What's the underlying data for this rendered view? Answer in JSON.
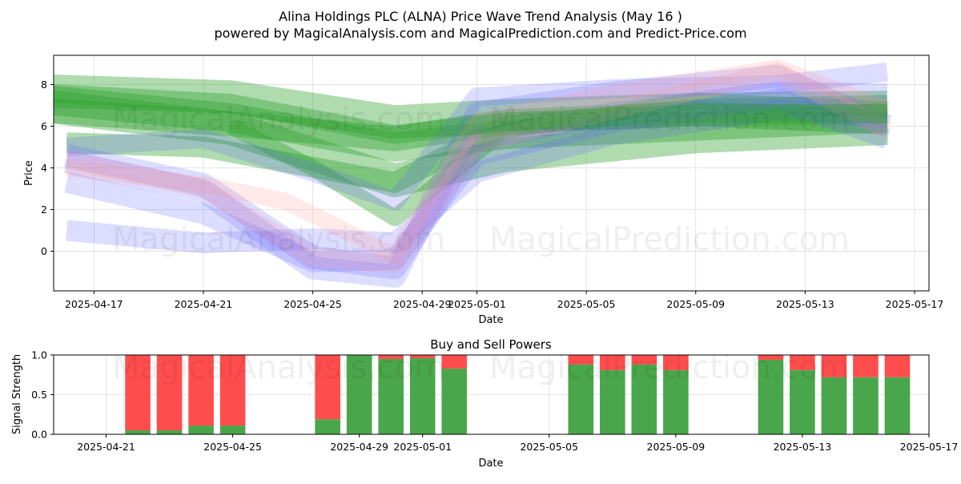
{
  "figure": {
    "title_line1": "Alina Holdings PLC (ALNA) Price Wave Trend Analysis (May 16 )",
    "title_line2": "powered by MagicalAnalysis.com and MagicalPrediction.com and Predict-Price.com",
    "watermark_left": "MagicalAnalysis.com",
    "watermark_right": "MagicalPrediction.com"
  },
  "colors": {
    "green_band": "#2ca02c",
    "blue_band": "#6666ff",
    "red_band": "#ff9999",
    "buy_bar": "#4aa64a",
    "sell_bar": "#ff4d4d",
    "grid": "#dddddd"
  },
  "chart_data": [
    {
      "type": "area",
      "title": "",
      "xlabel": "Date",
      "ylabel": "Price",
      "x_range": [
        "2025-04-15",
        "2025-05-17"
      ],
      "ylim": [
        -1.9,
        9.4
      ],
      "xticks": [
        "2025-04-17",
        "2025-04-21",
        "2025-04-25",
        "2025-04-29",
        "2025-05-01",
        "2025-05-05",
        "2025-05-09",
        "2025-05-13",
        "2025-05-17"
      ],
      "yticks": [
        0,
        2,
        4,
        6,
        8
      ],
      "grid": true,
      "series": [
        {
          "color": "green",
          "points": [
            [
              "2025-04-15",
              7.7
            ],
            [
              "2025-04-22",
              7.4
            ],
            [
              "2025-04-28",
              6.2
            ],
            [
              "2025-05-02",
              6.5
            ],
            [
              "2025-05-09",
              6.8
            ],
            [
              "2025-05-16",
              6.9
            ]
          ],
          "width": 1.6
        },
        {
          "color": "green",
          "points": [
            [
              "2025-04-15",
              7.3
            ],
            [
              "2025-04-22",
              6.4
            ],
            [
              "2025-04-28",
              5.0
            ],
            [
              "2025-05-02",
              5.6
            ],
            [
              "2025-05-09",
              6.0
            ],
            [
              "2025-05-16",
              6.4
            ]
          ],
          "width": 1.4
        },
        {
          "color": "green",
          "points": [
            [
              "2025-04-15",
              7.0
            ],
            [
              "2025-04-22",
              5.9
            ],
            [
              "2025-04-28",
              3.4
            ],
            [
              "2025-05-02",
              4.6
            ],
            [
              "2025-05-09",
              5.5
            ],
            [
              "2025-05-16",
              5.9
            ]
          ],
          "width": 1.6
        },
        {
          "color": "green",
          "points": [
            [
              "2025-04-15",
              6.8
            ],
            [
              "2025-04-23",
              6.0
            ],
            [
              "2025-04-28",
              5.4
            ],
            [
              "2025-05-02",
              6.2
            ],
            [
              "2025-05-09",
              6.6
            ],
            [
              "2025-05-16",
              6.2
            ]
          ],
          "width": 1.2
        },
        {
          "color": "green",
          "points": [
            [
              "2025-04-16",
              5.2
            ],
            [
              "2025-04-21",
              5.0
            ],
            [
              "2025-04-28",
              3.3
            ],
            [
              "2025-05-02",
              6.0
            ],
            [
              "2025-05-09",
              6.8
            ],
            [
              "2025-05-16",
              7.0
            ]
          ],
          "width": 1.0
        },
        {
          "color": "green",
          "points": [
            [
              "2025-04-22",
              6.0
            ],
            [
              "2025-04-25",
              4.0
            ],
            [
              "2025-04-28",
              1.6
            ],
            [
              "2025-05-02",
              5.8
            ],
            [
              "2025-05-09",
              7.2
            ],
            [
              "2025-05-16",
              6.8
            ]
          ],
          "width": 0.8
        },
        {
          "color": "blue",
          "points": [
            [
              "2025-04-16",
              4.6
            ],
            [
              "2025-04-21",
              3.2
            ],
            [
              "2025-04-25",
              -0.3
            ],
            [
              "2025-04-28",
              -0.8
            ],
            [
              "2025-05-01",
              5.4
            ],
            [
              "2025-05-06",
              6.6
            ],
            [
              "2025-05-12",
              7.6
            ],
            [
              "2025-05-16",
              7.5
            ]
          ],
          "width": 1.1
        },
        {
          "color": "blue",
          "points": [
            [
              "2025-04-16",
              4.3
            ],
            [
              "2025-04-21",
              2.9
            ],
            [
              "2025-04-25",
              -0.8
            ],
            [
              "2025-04-28",
              -1.2
            ],
            [
              "2025-05-01",
              6.6
            ],
            [
              "2025-05-06",
              7.6
            ],
            [
              "2025-05-12",
              8.4
            ],
            [
              "2025-05-16",
              6.0
            ]
          ],
          "width": 1.1
        },
        {
          "color": "blue",
          "points": [
            [
              "2025-04-16",
              3.3
            ],
            [
              "2025-04-21",
              1.8
            ],
            [
              "2025-04-25",
              -0.5
            ],
            [
              "2025-04-28",
              -0.4
            ],
            [
              "2025-05-01",
              4.6
            ],
            [
              "2025-05-06",
              6.2
            ],
            [
              "2025-05-12",
              7.3
            ],
            [
              "2025-05-16",
              5.4
            ]
          ],
          "width": 1.0
        },
        {
          "color": "blue",
          "points": [
            [
              "2025-04-16",
              1.0
            ],
            [
              "2025-04-21",
              0.4
            ],
            [
              "2025-04-25",
              0.6
            ],
            [
              "2025-04-28",
              0.4
            ],
            [
              "2025-05-01",
              3.8
            ],
            [
              "2025-05-06",
              5.6
            ],
            [
              "2025-05-12",
              6.8
            ],
            [
              "2025-05-16",
              6.4
            ]
          ],
          "width": 1.0
        },
        {
          "color": "blue",
          "points": [
            [
              "2025-04-16",
              5.0
            ],
            [
              "2025-04-21",
              5.4
            ],
            [
              "2025-04-25",
              3.8
            ],
            [
              "2025-04-28",
              2.4
            ],
            [
              "2025-05-01",
              7.4
            ],
            [
              "2025-05-06",
              7.8
            ],
            [
              "2025-05-12",
              8.0
            ],
            [
              "2025-05-16",
              8.6
            ]
          ],
          "width": 0.9
        },
        {
          "color": "red",
          "points": [
            [
              "2025-04-16",
              4.4
            ],
            [
              "2025-04-21",
              3.0
            ],
            [
              "2025-04-25",
              -0.3
            ],
            [
              "2025-04-28",
              -0.6
            ],
            [
              "2025-05-01",
              5.2
            ],
            [
              "2025-05-06",
              6.8
            ],
            [
              "2025-05-12",
              8.6
            ],
            [
              "2025-05-16",
              5.8
            ]
          ],
          "width": 0.9
        },
        {
          "color": "red",
          "points": [
            [
              "2025-04-16",
              4.0
            ],
            [
              "2025-04-21",
              3.2
            ],
            [
              "2025-04-24",
              2.4
            ],
            [
              "2025-04-28",
              -0.2
            ],
            [
              "2025-05-01",
              6.2
            ],
            [
              "2025-05-06",
              7.6
            ],
            [
              "2025-05-12",
              8.8
            ],
            [
              "2025-05-16",
              6.8
            ]
          ],
          "width": 0.8
        },
        {
          "color": "green",
          "points": [
            [
              "2025-04-15",
              7.6
            ],
            [
              "2025-04-22",
              7.1
            ],
            [
              "2025-04-28",
              5.6
            ],
            [
              "2025-05-02",
              6.2
            ],
            [
              "2025-05-09",
              6.6
            ],
            [
              "2025-05-16",
              6.6
            ]
          ],
          "width": 0.9
        }
      ]
    },
    {
      "type": "bar",
      "title": "Buy and Sell Powers",
      "xlabel": "Date",
      "ylabel": "Signal Strength",
      "x_range": [
        "2025-04-20",
        "2025-05-17"
      ],
      "ylim": [
        0,
        1.0
      ],
      "xticks": [
        "2025-04-21",
        "2025-04-25",
        "2025-04-29",
        "2025-05-01",
        "2025-05-05",
        "2025-05-09",
        "2025-05-13",
        "2025-05-17"
      ],
      "yticks": [
        0.0,
        0.5,
        1.0
      ],
      "grid": true,
      "categories": [
        "2025-04-22",
        "2025-04-23",
        "2025-04-24",
        "2025-04-25",
        "2025-04-28",
        "2025-04-29",
        "2025-04-30",
        "2025-05-01",
        "2025-05-02",
        "2025-05-06",
        "2025-05-07",
        "2025-05-08",
        "2025-05-09",
        "2025-05-12",
        "2025-05-13",
        "2025-05-14",
        "2025-05-15",
        "2025-05-16"
      ],
      "series": [
        {
          "name": "Buy",
          "values": [
            0.05,
            0.05,
            0.11,
            0.11,
            0.19,
            1.0,
            0.95,
            0.96,
            0.83,
            0.88,
            0.81,
            0.88,
            0.81,
            0.94,
            0.81,
            0.72,
            0.72,
            0.72
          ]
        },
        {
          "name": "Sell",
          "values": [
            0.95,
            0.95,
            0.89,
            0.89,
            0.81,
            0.0,
            0.05,
            0.04,
            0.17,
            0.12,
            0.19,
            0.12,
            0.19,
            0.06,
            0.19,
            0.28,
            0.28,
            0.28
          ]
        }
      ]
    }
  ]
}
